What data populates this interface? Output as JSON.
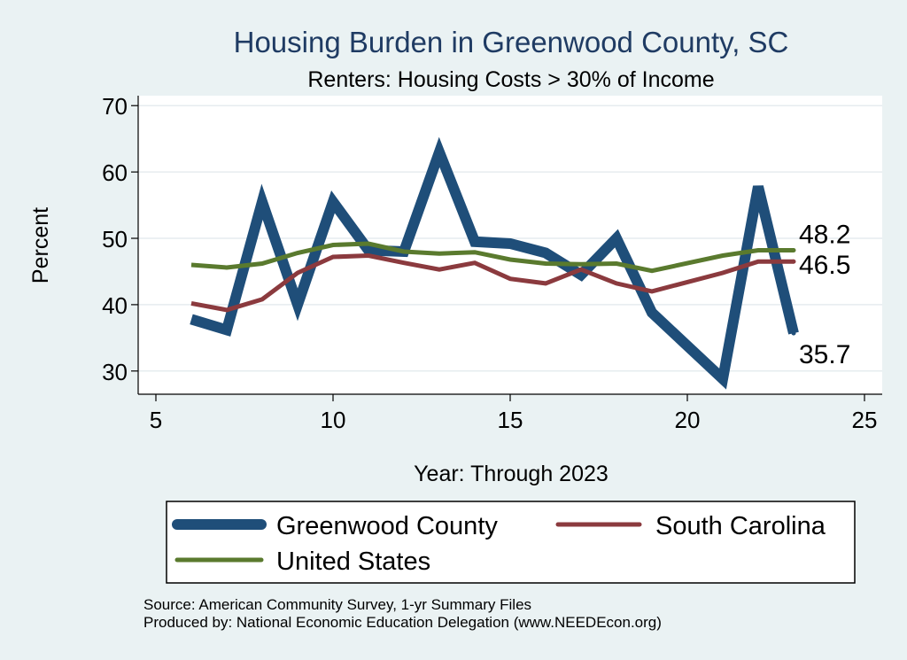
{
  "chart_data": {
    "type": "line",
    "title": "Housing Burden in Greenwood County, SC",
    "subtitle": "Renters: Housing Costs > 30% of Income",
    "xlabel": "Year: Through 2023",
    "ylabel": "Percent",
    "xlim": [
      4.5,
      25.5
    ],
    "ylim": [
      26.5,
      71.5
    ],
    "x_ticks": [
      5,
      10,
      15,
      20,
      25
    ],
    "y_ticks": [
      30,
      40,
      50,
      60,
      70
    ],
    "grid": true,
    "series": [
      {
        "name": "Greenwood County",
        "color": "#1f4e79",
        "x": [
          6,
          7,
          8,
          9,
          10,
          11,
          12,
          13,
          14,
          15,
          16,
          17,
          18,
          19,
          21,
          22,
          23
        ],
        "values": [
          37.8,
          36.2,
          55.5,
          40.0,
          55.5,
          48.2,
          48.0,
          63.0,
          49.5,
          49.2,
          47.8,
          44.5,
          50.0,
          38.8,
          28.8,
          57.8,
          35.7
        ],
        "end_label": "35.7"
      },
      {
        "name": "South Carolina",
        "color": "#8b3a3e",
        "x": [
          6,
          7,
          8,
          9,
          10,
          11,
          12,
          13,
          14,
          15,
          16,
          17,
          18,
          19,
          21,
          22,
          23
        ],
        "values": [
          40.2,
          39.2,
          40.8,
          44.8,
          47.2,
          47.4,
          46.3,
          45.3,
          46.3,
          43.9,
          43.2,
          45.3,
          43.2,
          42.0,
          44.8,
          46.5,
          46.5
        ],
        "end_label": "46.5"
      },
      {
        "name": "United States",
        "color": "#5a7a2e",
        "x": [
          6,
          7,
          8,
          9,
          10,
          11,
          12,
          13,
          14,
          15,
          16,
          17,
          18,
          19,
          21,
          22,
          23
        ],
        "values": [
          46.0,
          45.6,
          46.2,
          47.8,
          49.0,
          49.2,
          48.0,
          47.7,
          47.9,
          46.8,
          46.2,
          46.1,
          46.2,
          45.1,
          47.4,
          48.2,
          48.2
        ],
        "end_label": "48.2"
      }
    ],
    "legend": {
      "position": "bottom",
      "entries": [
        "Greenwood County",
        "South Carolina",
        "United States"
      ]
    }
  },
  "source": {
    "line1": "Source: American Community Survey, 1-yr Summary Files",
    "line2": "Produced by: National Economic Education Delegation (www.NEEDEcon.org)"
  }
}
